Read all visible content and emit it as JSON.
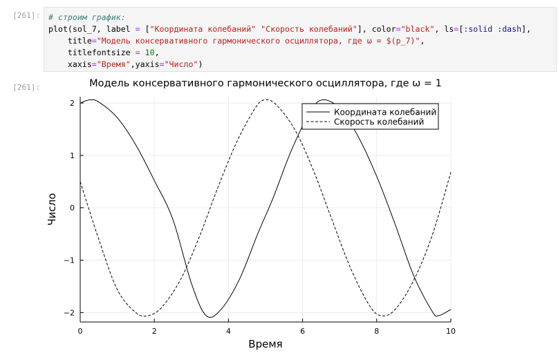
{
  "notebook": {
    "input_prompt": "[261]:",
    "output_prompt": "[261]:",
    "code": {
      "comment": "# строим график:",
      "l1_fn": "plot(sol_7, label ",
      "l1_eq": "=",
      "l1_a": " [",
      "l1_s1": "\"Координата колебаний\"",
      "l1_b": " ",
      "l1_s2": "\"Скорость колебаний\"",
      "l1_c": "], color",
      "l1_eq2": "=",
      "l1_s3": "\"black\"",
      "l1_d": ", ls",
      "l1_eq3": "=",
      "l1_e": "[",
      "l1_sym1": ":solid",
      "l1_f": " ",
      "l1_sym2": ":dash",
      "l1_g": "],",
      "l2_a": "    title",
      "l2_eq": "=",
      "l2_s": "\"Модель консервативного гармонического осциллятора, где ω = $(p_7)\"",
      "l2_b": ",",
      "l3_a": "    titlefontsize ",
      "l3_eq": "=",
      "l3_b": " ",
      "l3_n": "10",
      "l3_c": ",",
      "l4_a": "    xaxis",
      "l4_eq": "=",
      "l4_s1": "\"Время\"",
      "l4_b": ",yaxis",
      "l4_eq2": "=",
      "l4_s2": "\"Число\"",
      "l4_c": ")"
    }
  },
  "colors": {
    "series": "#000000",
    "grid": "#ececec"
  },
  "chart_data": {
    "type": "line",
    "title": "Модель консервативного гармонического осциллятора, где ω = 1",
    "xlabel": "Время",
    "ylabel": "Число",
    "xlim": [
      0,
      10
    ],
    "ylim": [
      -2.18,
      2.12
    ],
    "xticks": [
      0,
      2,
      4,
      6,
      8,
      10
    ],
    "xtick_labels": [
      "0",
      "2",
      "4",
      "6",
      "8",
      "10"
    ],
    "yticks": [
      -2,
      -1,
      0,
      1,
      2
    ],
    "ytick_labels": [
      "−2",
      "−1",
      "0",
      "1",
      "2"
    ],
    "grid": true,
    "legend": "top-right",
    "series": [
      {
        "name": "Координата колебаний",
        "style": "solid",
        "x": [
          0,
          0.25,
          0.5,
          1.0,
          1.5,
          2.0,
          2.5,
          3.0,
          3.4,
          3.8,
          4.3,
          4.8,
          5.2,
          5.7,
          6.2,
          6.53,
          7.0,
          7.5,
          8.0,
          8.5,
          9.0,
          9.5,
          9.67,
          10
        ],
        "y": [
          2.0,
          2.06,
          2.02,
          1.72,
          1.2,
          0.52,
          -0.22,
          -1.44,
          -2.06,
          -1.94,
          -1.36,
          -0.48,
          0.18,
          1.1,
          1.82,
          2.06,
          1.9,
          1.36,
          0.6,
          -0.32,
          -1.3,
          -1.98,
          -2.06,
          -1.94
        ]
      },
      {
        "name": "Скорость колебаний",
        "style": "dash",
        "x": [
          0,
          0.5,
          1.0,
          1.5,
          1.83,
          2.2,
          2.7,
          3.2,
          3.7,
          4.2,
          4.7,
          4.97,
          5.3,
          5.8,
          6.3,
          6.8,
          7.3,
          7.8,
          8.12,
          8.5,
          9.0,
          9.5,
          10
        ],
        "y": [
          0.5,
          -0.6,
          -1.56,
          -2.0,
          -2.06,
          -1.9,
          -1.38,
          -0.58,
          0.36,
          1.22,
          1.88,
          2.06,
          1.96,
          1.48,
          0.7,
          -0.24,
          -1.16,
          -1.86,
          -2.06,
          -1.94,
          -1.38,
          -0.52,
          0.68
        ]
      }
    ]
  }
}
